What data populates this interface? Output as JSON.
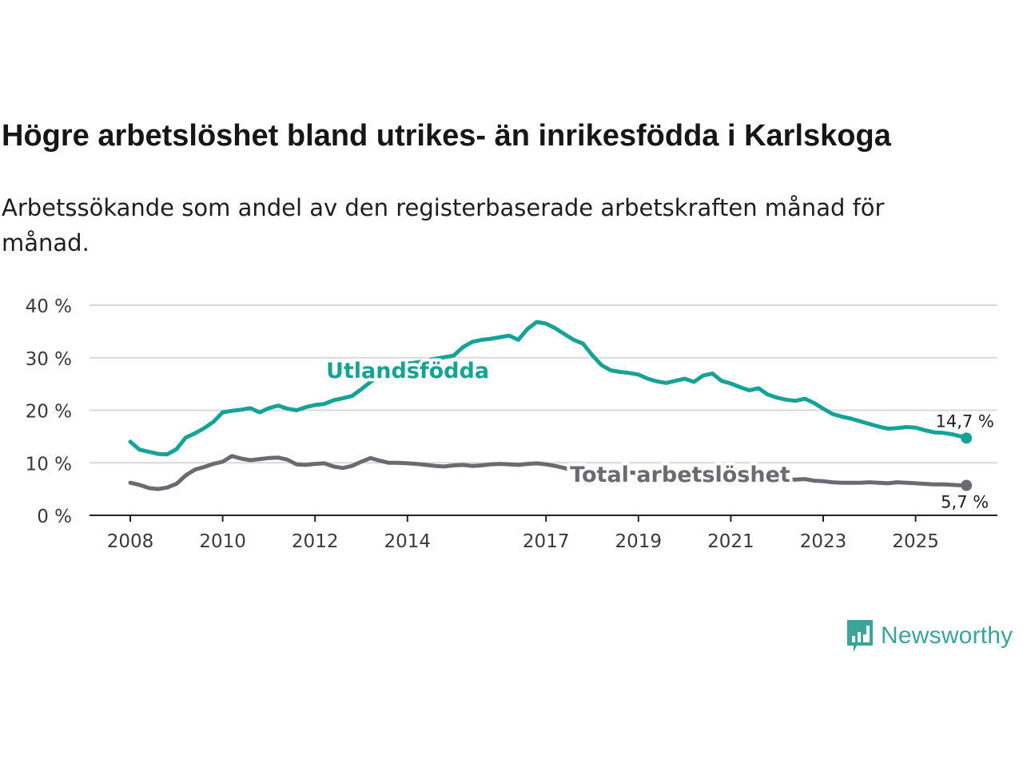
{
  "title": "Högre arbetslöshet bland utrikes- än inrikesfödda i Karlskoga",
  "subtitle": "Arbetssökande som andel av den registerbaserade arbetskraften månad för månad.",
  "brand": {
    "name": "Newsworthy",
    "icon": "bar-chart-speech-bubble-icon",
    "color": "#3aa39a"
  },
  "chart_data": {
    "type": "line",
    "xlim": [
      2008.0,
      2026.7
    ],
    "ylim": [
      0,
      40
    ],
    "yticks": [
      0,
      10,
      20,
      30,
      40
    ],
    "ytick_labels": [
      "0 %",
      "10 %",
      "20 %",
      "30 %",
      "40 %"
    ],
    "xticks": [
      2008,
      2010,
      2012,
      2014,
      2017,
      2019,
      2021,
      2023,
      2025
    ],
    "xtick_labels": [
      "2008",
      "2010",
      "2012",
      "2014",
      "2017",
      "2019",
      "2021",
      "2023",
      "2025"
    ],
    "grid": true,
    "series": [
      {
        "name": "Utlandsfödda",
        "color": "#16a396",
        "end_label": "14,7 %",
        "x": [
          2008.0,
          2008.2,
          2008.4,
          2008.6,
          2008.8,
          2009.0,
          2009.2,
          2009.4,
          2009.6,
          2009.8,
          2010.0,
          2010.2,
          2010.4,
          2010.6,
          2010.8,
          2011.0,
          2011.2,
          2011.4,
          2011.6,
          2011.8,
          2012.0,
          2012.2,
          2012.4,
          2012.6,
          2012.8,
          2013.0,
          2013.2,
          2013.4,
          2013.6,
          2013.8,
          2014.0,
          2014.2,
          2014.4,
          2014.6,
          2014.8,
          2015.0,
          2015.2,
          2015.4,
          2015.6,
          2015.8,
          2016.0,
          2016.2,
          2016.4,
          2016.6,
          2016.8,
          2017.0,
          2017.2,
          2017.4,
          2017.6,
          2017.8,
          2018.0,
          2018.2,
          2018.4,
          2018.6,
          2018.8,
          2019.0,
          2019.2,
          2019.4,
          2019.6,
          2019.8,
          2020.0,
          2020.2,
          2020.4,
          2020.6,
          2020.8,
          2021.0,
          2021.2,
          2021.4,
          2021.6,
          2021.8,
          2022.0,
          2022.2,
          2022.4,
          2022.6,
          2022.8,
          2023.0,
          2023.2,
          2023.4,
          2023.6,
          2023.8,
          2024.0,
          2024.2,
          2024.4,
          2024.6,
          2024.8,
          2025.0,
          2025.2,
          2025.4,
          2025.6,
          2025.8,
          2026.0,
          2026.1
        ],
        "values": [
          14.0,
          12.5,
          12.1,
          11.7,
          11.6,
          12.6,
          14.8,
          15.6,
          16.6,
          17.8,
          19.6,
          19.9,
          20.1,
          20.4,
          19.6,
          20.4,
          20.9,
          20.3,
          20.0,
          20.6,
          21.0,
          21.2,
          21.9,
          22.3,
          22.7,
          24.0,
          25.4,
          26.6,
          27.6,
          28.4,
          28.9,
          29.1,
          29.4,
          29.8,
          30.1,
          30.4,
          32.0,
          33.0,
          33.4,
          33.6,
          33.9,
          34.2,
          33.4,
          35.5,
          36.8,
          36.5,
          35.6,
          34.5,
          33.4,
          32.7,
          30.5,
          28.6,
          27.6,
          27.3,
          27.1,
          26.8,
          26.0,
          25.5,
          25.2,
          25.6,
          26.0,
          25.4,
          26.6,
          27.0,
          25.6,
          25.1,
          24.4,
          23.8,
          24.2,
          23.0,
          22.4,
          22.0,
          21.8,
          22.2,
          21.4,
          20.3,
          19.3,
          18.8,
          18.4,
          17.9,
          17.4,
          16.9,
          16.5,
          16.6,
          16.8,
          16.7,
          16.2,
          15.8,
          15.7,
          15.4,
          15.0,
          14.7
        ]
      },
      {
        "name": "Total arbetslöshet",
        "color": "#6b6a70",
        "end_label": "5,7 %",
        "x": [
          2008.0,
          2008.2,
          2008.4,
          2008.6,
          2008.8,
          2009.0,
          2009.2,
          2009.4,
          2009.6,
          2009.8,
          2010.0,
          2010.2,
          2010.4,
          2010.6,
          2010.8,
          2011.0,
          2011.2,
          2011.4,
          2011.6,
          2011.8,
          2012.0,
          2012.2,
          2012.4,
          2012.6,
          2012.8,
          2013.0,
          2013.2,
          2013.4,
          2013.6,
          2013.8,
          2014.0,
          2014.2,
          2014.4,
          2014.6,
          2014.8,
          2015.0,
          2015.2,
          2015.4,
          2015.6,
          2015.8,
          2016.0,
          2016.2,
          2016.4,
          2016.6,
          2016.8,
          2017.0,
          2017.2,
          2017.4,
          2017.6,
          2017.8,
          2018.0,
          2018.2,
          2018.4,
          2018.6,
          2018.8,
          2019.0,
          2019.2,
          2019.4,
          2019.6,
          2019.8,
          2020.0,
          2020.2,
          2020.4,
          2020.6,
          2020.8,
          2021.0,
          2021.2,
          2021.4,
          2021.6,
          2021.8,
          2022.0,
          2022.2,
          2022.4,
          2022.6,
          2022.8,
          2023.0,
          2023.2,
          2023.4,
          2023.6,
          2023.8,
          2024.0,
          2024.2,
          2024.4,
          2024.6,
          2024.8,
          2025.0,
          2025.2,
          2025.4,
          2025.6,
          2025.8,
          2026.0,
          2026.1
        ],
        "values": [
          6.2,
          5.8,
          5.2,
          5.0,
          5.3,
          6.0,
          7.6,
          8.7,
          9.2,
          9.8,
          10.2,
          11.3,
          10.8,
          10.5,
          10.7,
          10.9,
          11.0,
          10.6,
          9.7,
          9.6,
          9.8,
          9.9,
          9.3,
          9.0,
          9.4,
          10.2,
          10.9,
          10.4,
          10.0,
          10.0,
          9.9,
          9.8,
          9.6,
          9.4,
          9.3,
          9.5,
          9.6,
          9.4,
          9.5,
          9.7,
          9.8,
          9.7,
          9.6,
          9.8,
          9.9,
          9.7,
          9.4,
          9.0,
          8.5,
          8.2,
          8.2,
          8.3,
          8.5,
          8.4,
          8.2,
          8.0,
          7.9,
          7.7,
          7.6,
          7.6,
          7.8,
          7.6,
          7.5,
          7.5,
          7.3,
          7.3,
          7.2,
          7.1,
          7.0,
          6.9,
          6.9,
          6.8,
          6.8,
          6.9,
          6.6,
          6.5,
          6.3,
          6.2,
          6.2,
          6.2,
          6.3,
          6.2,
          6.1,
          6.3,
          6.2,
          6.1,
          6.0,
          5.9,
          5.9,
          5.8,
          5.7,
          5.7
        ]
      }
    ],
    "annotations": [
      {
        "text": "Utlandsfödda",
        "series": 0
      },
      {
        "text": "Total arbetslöshet",
        "series": 1
      }
    ]
  }
}
